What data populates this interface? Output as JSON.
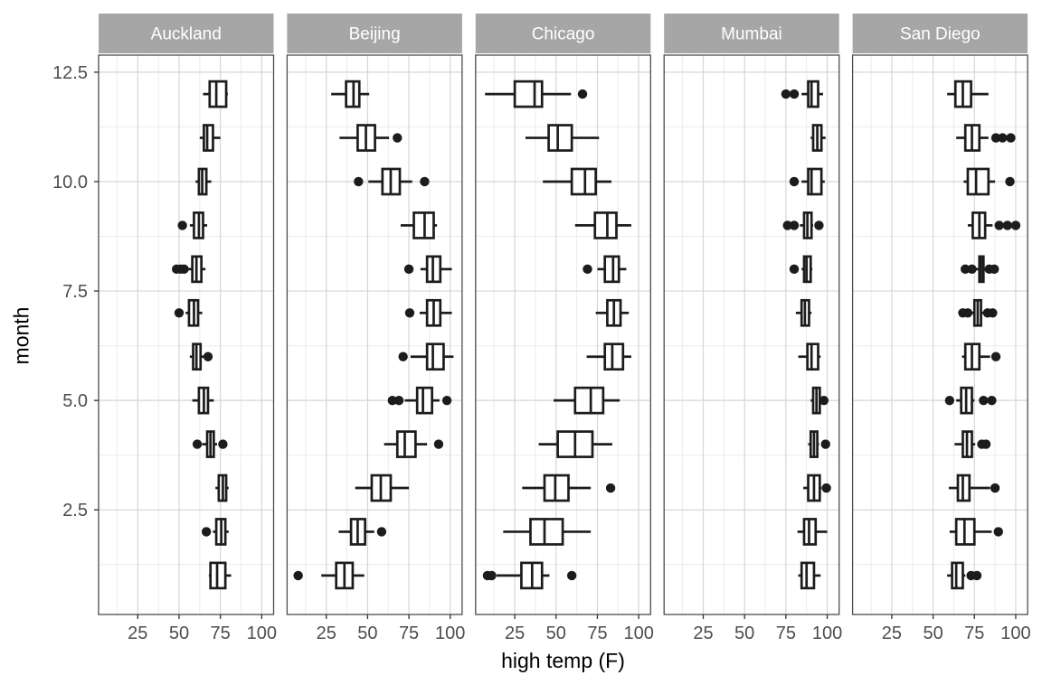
{
  "chart_data": {
    "type": "boxplot",
    "orientation": "horizontal",
    "xlabel": "high temp (F)",
    "ylabel": "month",
    "x_ticks": [
      25,
      50,
      75,
      100
    ],
    "x_tick_labels": [
      "25",
      "50",
      "75",
      "100"
    ],
    "y_ticks": [
      2.5,
      5.0,
      7.5,
      10.0,
      12.5
    ],
    "y_tick_labels": [
      "2.5",
      "5.0",
      "7.5",
      "10.0",
      "12.5"
    ],
    "x_minor": [
      12.5,
      37.5,
      62.5,
      87.5
    ],
    "y_minor": [
      1.25,
      3.75,
      6.25,
      8.75,
      11.25
    ],
    "xlim": [
      1.3,
      107.2
    ],
    "ylim": [
      0.11,
      12.89
    ],
    "grid": true,
    "legend": "none",
    "facets": [
      "Auckland",
      "Beijing",
      "Chicago",
      "Mumbai",
      "San Diego"
    ],
    "months": [
      1,
      2,
      3,
      4,
      5,
      6,
      7,
      8,
      9,
      10,
      11,
      12
    ],
    "box_format": [
      "month",
      "whisker_low",
      "q1",
      "median",
      "q3",
      "whisker_high",
      "outliers"
    ],
    "series": [
      {
        "name": "Auckland",
        "boxes": [
          [
            1,
            68,
            69,
            73,
            78,
            81.5,
            []
          ],
          [
            2,
            70.5,
            72.5,
            75.5,
            78,
            80,
            [
              66.5
            ]
          ],
          [
            3,
            72,
            74,
            76.5,
            78.5,
            80,
            []
          ],
          [
            4,
            64,
            67,
            69,
            71,
            73,
            [
              61,
              76.5
            ]
          ],
          [
            5,
            58,
            62,
            65,
            67.5,
            71,
            []
          ],
          [
            6,
            56.5,
            58.5,
            60.5,
            63,
            65,
            [
              67.5
            ]
          ],
          [
            7,
            54,
            56,
            59,
            61.5,
            64,
            [
              50
            ]
          ],
          [
            8,
            54.5,
            58,
            60.5,
            63.5,
            66,
            [
              48.5,
              51,
              53
            ]
          ],
          [
            9,
            56.5,
            59,
            62,
            64.5,
            67,
            [
              52
            ]
          ],
          [
            10,
            60,
            62,
            64,
            66.5,
            69.5,
            []
          ],
          [
            11,
            62.5,
            65,
            67,
            70.5,
            75,
            []
          ],
          [
            12,
            64.5,
            68.5,
            72.5,
            78.5,
            79.5,
            []
          ]
        ]
      },
      {
        "name": "Beijing",
        "boxes": [
          [
            1,
            22,
            31,
            36,
            41,
            48,
            [
              8
            ]
          ],
          [
            2,
            32.5,
            40,
            44,
            48.5,
            54,
            [
              58.5
            ]
          ],
          [
            3,
            42.5,
            52.5,
            58,
            64,
            75,
            []
          ],
          [
            4,
            60,
            68,
            72.5,
            79,
            86,
            [
              93
            ]
          ],
          [
            5,
            72.5,
            80,
            83.5,
            89,
            93.5,
            [
              65,
              69,
              98
            ]
          ],
          [
            6,
            76,
            86,
            89.5,
            96,
            102,
            [
              71.5
            ]
          ],
          [
            7,
            81.5,
            86,
            90,
            94,
            101,
            [
              75.5
            ]
          ],
          [
            8,
            82,
            86,
            89.5,
            94,
            101,
            [
              75
            ]
          ],
          [
            9,
            70,
            78,
            84.5,
            90,
            92,
            []
          ],
          [
            10,
            50.5,
            59,
            64,
            69.5,
            77,
            [
              44.5,
              84.5
            ]
          ],
          [
            11,
            33,
            44,
            49,
            54.5,
            63,
            [
              68
            ]
          ],
          [
            12,
            28,
            37,
            41.5,
            45,
            51,
            []
          ]
        ]
      },
      {
        "name": "Chicago",
        "boxes": [
          [
            1,
            14,
            29,
            35.5,
            41.5,
            46,
            [
              8.5,
              11,
              59.5
            ]
          ],
          [
            2,
            18,
            34.5,
            43,
            54,
            71,
            []
          ],
          [
            3,
            29.5,
            43,
            49.5,
            57.5,
            71,
            [
              83
            ]
          ],
          [
            4,
            39.5,
            51,
            61.5,
            72,
            84,
            []
          ],
          [
            5,
            48.5,
            61.5,
            71,
            78.5,
            88.5,
            []
          ],
          [
            6,
            68.5,
            79.5,
            84,
            90.5,
            95.5,
            []
          ],
          [
            7,
            74,
            81,
            85,
            89,
            94,
            []
          ],
          [
            8,
            75,
            79.5,
            84.5,
            88,
            92.5,
            [
              69
            ]
          ],
          [
            9,
            61.5,
            73.5,
            81,
            86.5,
            95.5,
            []
          ],
          [
            10,
            42,
            59.5,
            67.5,
            74,
            83.5,
            []
          ],
          [
            11,
            31.5,
            45.5,
            51,
            59.5,
            76,
            []
          ],
          [
            12,
            7,
            25,
            37,
            41.5,
            59,
            [
              66
            ]
          ]
        ]
      },
      {
        "name": "Mumbai",
        "boxes": [
          [
            1,
            82.5,
            84.5,
            87.5,
            92,
            96,
            []
          ],
          [
            2,
            82,
            86,
            89,
            93,
            100,
            []
          ],
          [
            3,
            85.5,
            88.5,
            92,
            95.5,
            96.5,
            [
              99.5
            ]
          ],
          [
            4,
            88.5,
            90,
            92,
            94,
            95,
            [
              99
            ]
          ],
          [
            5,
            90,
            91.5,
            93.5,
            95.5,
            96,
            [
              98
            ]
          ],
          [
            6,
            82.5,
            88,
            90.5,
            94.5,
            96,
            []
          ],
          [
            7,
            81,
            84.5,
            86.5,
            89,
            90.5,
            []
          ],
          [
            8,
            84.5,
            86,
            87.5,
            90,
            91,
            [
              80
            ]
          ],
          [
            9,
            83.5,
            86,
            88,
            90.5,
            91.5,
            [
              76,
              80,
              95
            ]
          ],
          [
            10,
            84.5,
            88.5,
            90.5,
            96.5,
            98.5,
            [
              80
            ]
          ],
          [
            11,
            90,
            91.5,
            94,
            96.5,
            99,
            []
          ],
          [
            12,
            84.5,
            88.5,
            90.5,
            94.5,
            97.5,
            [
              75,
              80
            ]
          ]
        ]
      },
      {
        "name": "San Diego",
        "boxes": [
          [
            1,
            58.5,
            61.5,
            64,
            68,
            69.5,
            [
              73,
              76.5
            ]
          ],
          [
            2,
            60,
            64,
            69,
            75,
            85.5,
            [
              89.5
            ]
          ],
          [
            3,
            59.5,
            65,
            68,
            72,
            84.5,
            [
              87.5
            ]
          ],
          [
            4,
            63,
            68,
            70.5,
            73.5,
            75.5,
            [
              79.5,
              82
            ]
          ],
          [
            5,
            64,
            67,
            70,
            73.5,
            75,
            [
              60,
              80.5,
              85.5
            ]
          ],
          [
            6,
            67.5,
            69.5,
            73.5,
            78,
            84.5,
            [
              88
            ]
          ],
          [
            7,
            73.5,
            75,
            77,
            79,
            80.5,
            [
              68,
              71,
              83,
              86
            ]
          ],
          [
            8,
            76,
            78,
            79,
            80.5,
            82,
            [
              69.5,
              73.5,
              84,
              87
            ]
          ],
          [
            9,
            71,
            74,
            78,
            81.5,
            86,
            [
              90,
              95,
              100
            ]
          ],
          [
            10,
            68.5,
            71,
            76,
            83.5,
            87.5,
            [
              96.5
            ]
          ],
          [
            11,
            64,
            69.5,
            73.5,
            78,
            83.5,
            [
              88,
              92,
              97
            ]
          ],
          [
            12,
            58.5,
            63.5,
            68,
            73,
            83.5,
            []
          ]
        ]
      }
    ],
    "colors": {
      "background": "#ffffff",
      "panel_background": "#ffffff",
      "panel_border": "#4d4d4d",
      "grid_major": "#d6d6d6",
      "grid_minor": "#ebebeb",
      "box_stroke": "#1c1c1c",
      "box_fill": "#ffffff",
      "outlier_fill": "#1c1c1c",
      "strip_background": "#a6a6a6",
      "strip_text": "#ffffff",
      "axis_text": "#4d4d4d",
      "axis_tick": "#333333",
      "axis_title": "#000000"
    }
  }
}
